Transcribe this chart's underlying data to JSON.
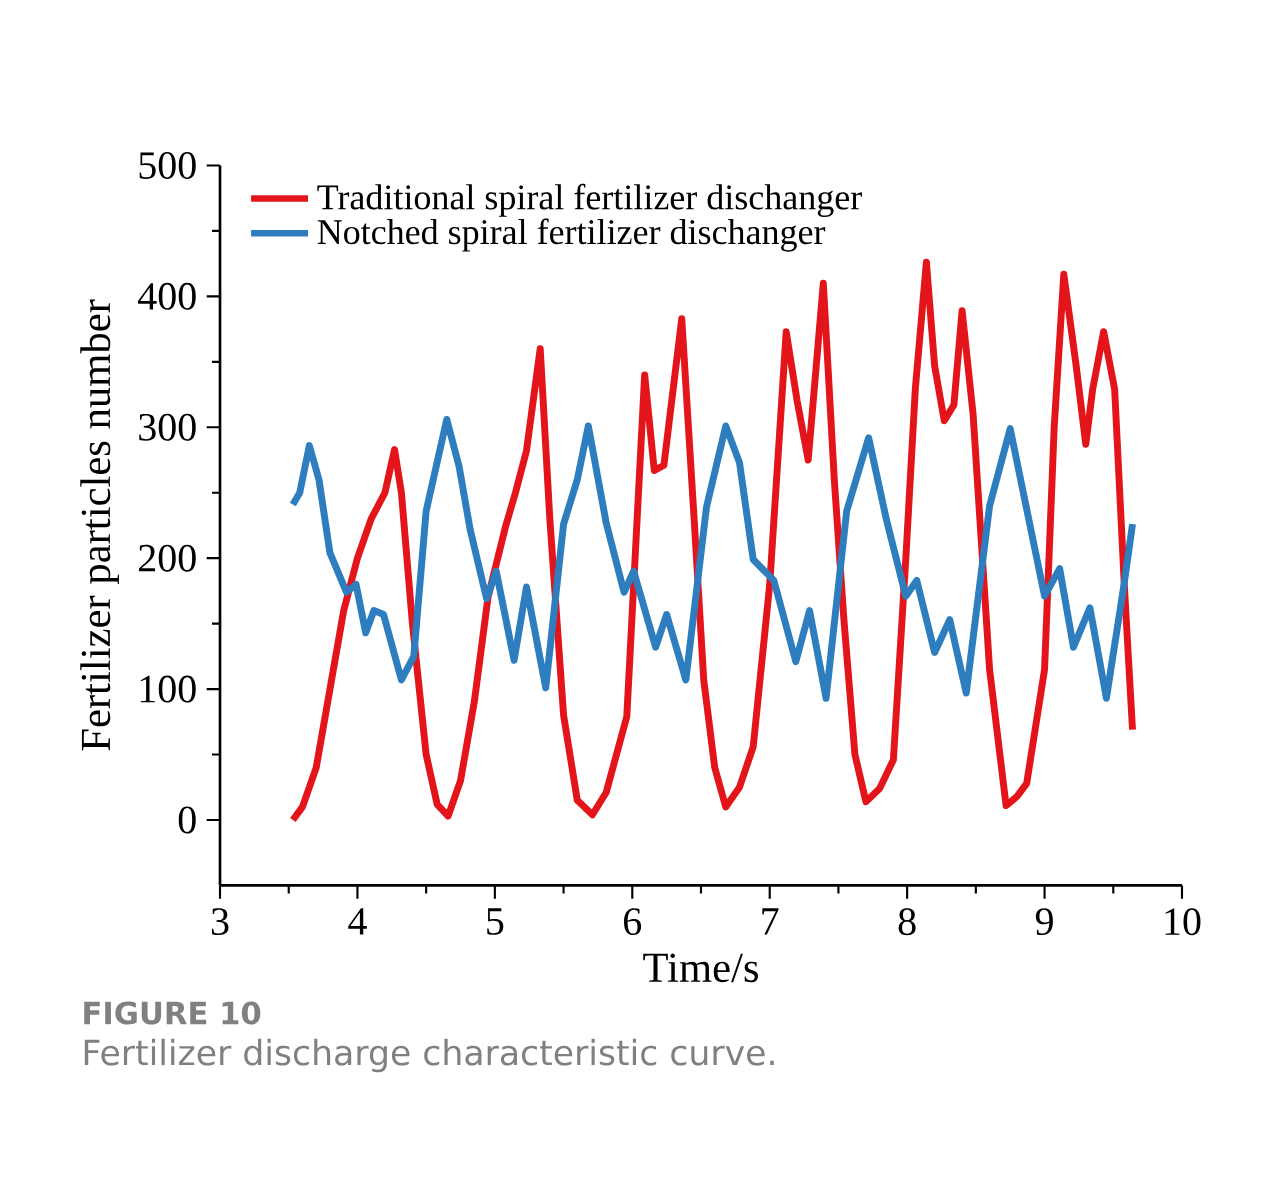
{
  "chart_data": {
    "type": "line",
    "xlabel": "Time/s",
    "ylabel": "Fertilizer particles number",
    "annotations": [
      "FIGURE 10",
      "Fertilizer discharge characteristic curve."
    ],
    "xlim": [
      3,
      10
    ],
    "xticks": [
      3,
      4,
      5,
      6,
      7,
      8,
      9,
      10
    ],
    "ylim": [
      -50,
      500
    ],
    "yticks": [
      0,
      100,
      200,
      300,
      400,
      500
    ],
    "legend": "top left",
    "marker": "none",
    "line_style": "solid",
    "series": [
      {
        "name": "Traditional spiral fertilizer dischanger",
        "color": "#e3151a",
        "x": [
          3.53,
          3.6,
          3.7,
          3.8,
          3.9,
          4.0,
          4.1,
          4.2,
          4.27,
          4.32,
          4.4,
          4.5,
          4.58,
          4.66,
          4.75,
          4.85,
          4.95,
          5.08,
          5.15,
          5.23,
          5.33,
          5.4,
          5.5,
          5.6,
          5.71,
          5.81,
          5.96,
          6.09,
          6.16,
          6.23,
          6.36,
          6.45,
          6.52,
          6.6,
          6.68,
          6.78,
          6.88,
          7.0,
          7.12,
          7.2,
          7.28,
          7.39,
          7.47,
          7.54,
          7.62,
          7.7,
          7.8,
          7.9,
          7.99,
          8.06,
          8.14,
          8.2,
          8.27,
          8.34,
          8.4,
          8.48,
          8.6,
          8.72,
          8.8,
          8.87,
          9.0,
          9.07,
          9.14,
          9.23,
          9.3,
          9.35,
          9.43,
          9.51,
          9.58,
          9.64
        ],
        "values": [
          0,
          10,
          40,
          100,
          160,
          200,
          230,
          250,
          283,
          250,
          150,
          50,
          12,
          3,
          30,
          90,
          170,
          225,
          250,
          282,
          360,
          230,
          80,
          15,
          4,
          21,
          79,
          340,
          267,
          271,
          383,
          230,
          107,
          40,
          10,
          25,
          56,
          180,
          373,
          320,
          275,
          410,
          260,
          153,
          50,
          14,
          24,
          46,
          199,
          330,
          426,
          347,
          305,
          317,
          389,
          310,
          115,
          11,
          18,
          28,
          115,
          300,
          417,
          347,
          287,
          329,
          373,
          329,
          180,
          69
        ]
      },
      {
        "name": "Notched spiral fertilizer dischanger",
        "color": "#2e7ebf",
        "x": [
          3.53,
          3.58,
          3.65,
          3.72,
          3.8,
          3.92,
          3.99,
          4.06,
          4.12,
          4.19,
          4.32,
          4.41,
          4.5,
          4.65,
          4.74,
          4.82,
          4.94,
          5.01,
          5.14,
          5.23,
          5.37,
          5.5,
          5.6,
          5.68,
          5.81,
          5.94,
          6.01,
          6.17,
          6.25,
          6.39,
          6.54,
          6.68,
          6.78,
          6.88,
          7.03,
          7.19,
          7.29,
          7.41,
          7.56,
          7.72,
          7.85,
          7.99,
          8.07,
          8.2,
          8.31,
          8.43,
          8.6,
          8.75,
          8.9,
          9.0,
          9.11,
          9.21,
          9.33,
          9.45,
          9.58,
          9.64
        ],
        "values": [
          241,
          250,
          286,
          260,
          204,
          174,
          180,
          143,
          160,
          157,
          107,
          125,
          236,
          306,
          270,
          222,
          169,
          190,
          122,
          178,
          101,
          226,
          260,
          301,
          227,
          174,
          190,
          132,
          157,
          107,
          239,
          301,
          273,
          199,
          183,
          121,
          160,
          93,
          236,
          292,
          229,
          171,
          183,
          128,
          153,
          97,
          240,
          299,
          222,
          171,
          192,
          132,
          162,
          93,
          181,
          226
        ]
      }
    ]
  }
}
